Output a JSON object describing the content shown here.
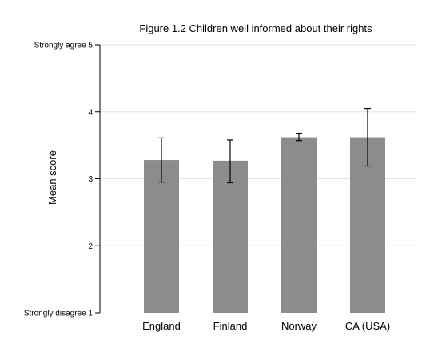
{
  "chart_data": {
    "type": "bar",
    "title": "Figure 1.2 Children well informed about their rights",
    "xlabel": "",
    "ylabel": "Mean score",
    "ylim": [
      1,
      5
    ],
    "yticks": [
      {
        "value": 5,
        "label": "Strongly agree 5"
      },
      {
        "value": 4,
        "label": "4"
      },
      {
        "value": 3,
        "label": "3"
      },
      {
        "value": 2,
        "label": "2"
      },
      {
        "value": 1,
        "label": "Strongly disagree 1"
      }
    ],
    "grid": true,
    "categories": [
      "England",
      "Finland",
      "Norway",
      "CA (USA)"
    ],
    "values": [
      3.28,
      3.27,
      3.62,
      3.62
    ],
    "error_bars": [
      {
        "low": 2.95,
        "high": 3.61
      },
      {
        "low": 2.94,
        "high": 3.58
      },
      {
        "low": 3.57,
        "high": 3.68
      },
      {
        "low": 3.19,
        "high": 4.05
      }
    ],
    "colors": {
      "bar": "#8c8c8c",
      "grid": "#e3e3e3"
    }
  }
}
